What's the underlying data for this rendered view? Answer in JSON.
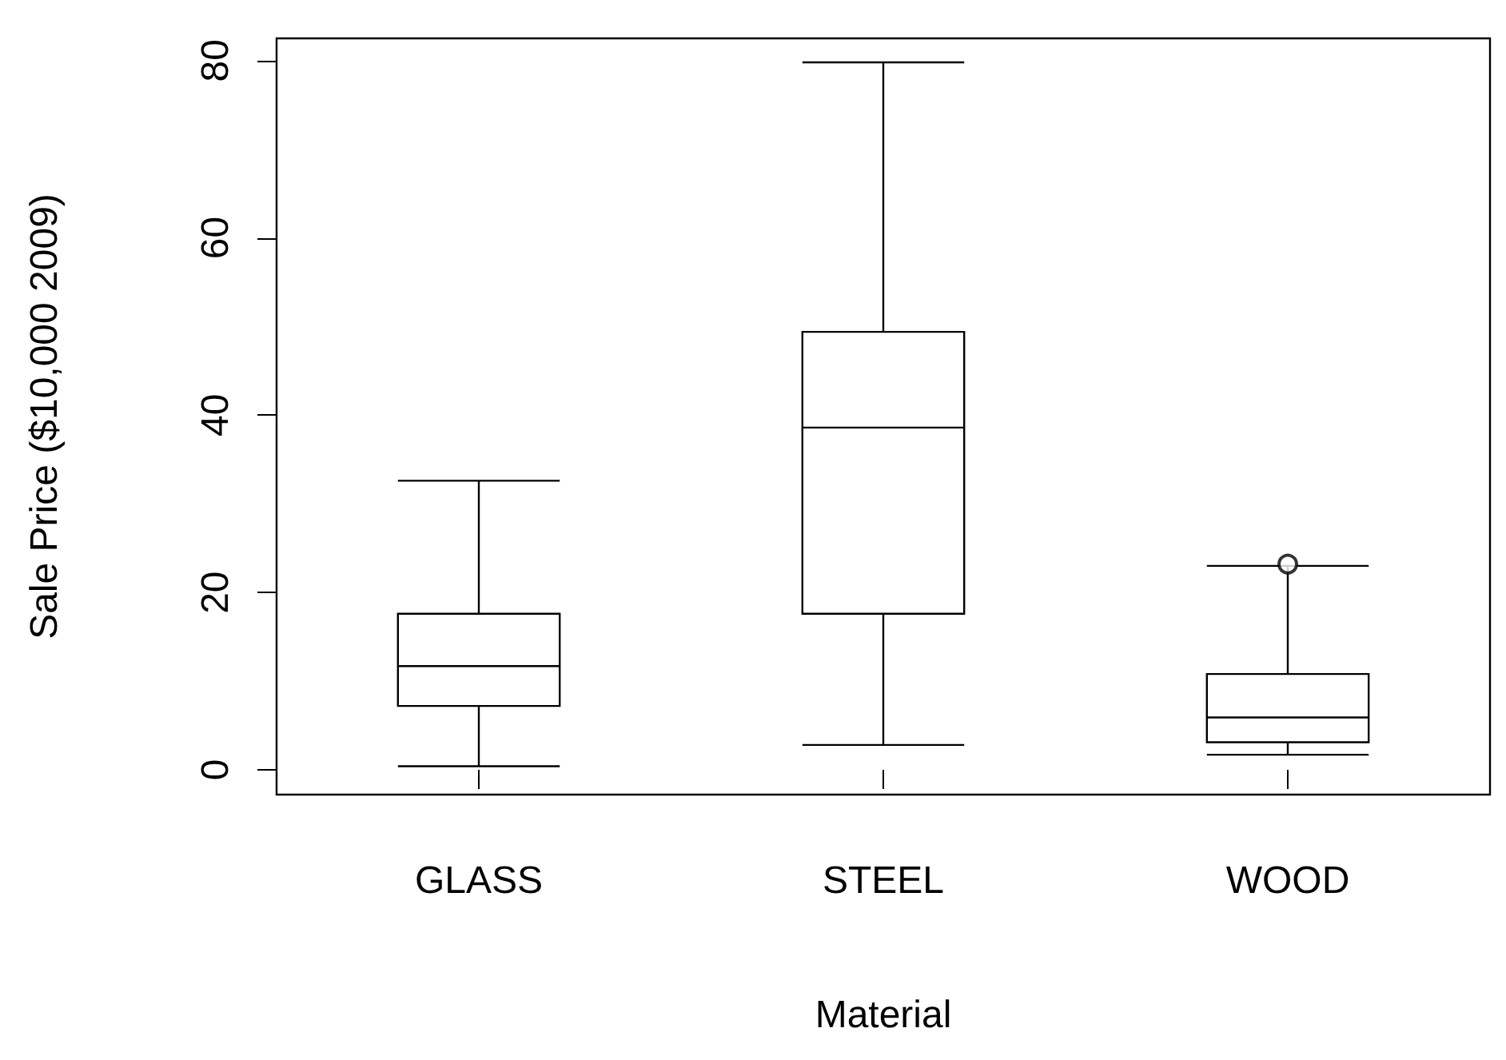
{
  "chart_data": {
    "type": "box",
    "xlabel": "Material",
    "ylabel": "Sale Price ($10,000 2009)",
    "categories": [
      "GLASS",
      "STEEL",
      "WOOD"
    ],
    "boxes": [
      {
        "low": 0.4,
        "q1": 7.2,
        "median": 11.7,
        "q3": 17.6,
        "high": 32.6
      },
      {
        "low": 2.8,
        "q1": 17.6,
        "median": 38.6,
        "q3": 49.4,
        "high": 79.8
      },
      {
        "low": 1.7,
        "q1": 3.1,
        "median": 5.9,
        "q3": 10.8,
        "high": 23.0,
        "outliers": [
          23.2
        ]
      }
    ],
    "ylim": [
      -2.8,
      82.5
    ],
    "yticks": [
      0,
      20,
      40,
      60,
      80
    ],
    "grid": false,
    "color": "#000000"
  }
}
